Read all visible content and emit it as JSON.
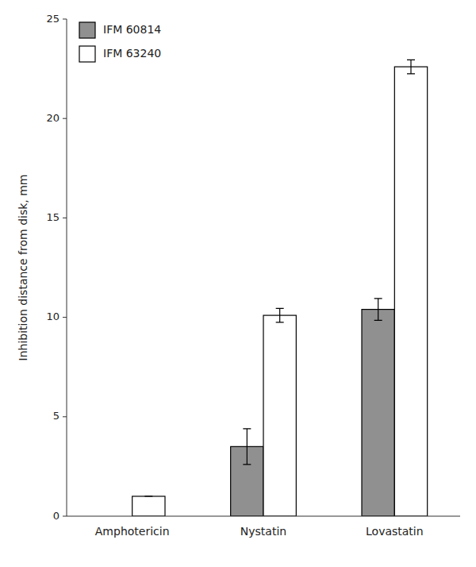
{
  "chart_data": {
    "type": "bar",
    "categories": [
      "Amphotericin",
      "Nystatin",
      "Lovastatin"
    ],
    "series": [
      {
        "name": "IFM 60814",
        "color": "#909090",
        "values": [
          0,
          3.5,
          10.4
        ],
        "errors": [
          0,
          0.9,
          0.55
        ]
      },
      {
        "name": "IFM 63240",
        "color": "#ffffff",
        "values": [
          1.0,
          10.1,
          22.6
        ],
        "errors": [
          0,
          0.35,
          0.35
        ]
      }
    ],
    "y_label": "Inhibition distance from disk, mm",
    "ylim": [
      0,
      25
    ],
    "yticks": [
      0,
      5,
      10,
      15,
      20,
      25
    ],
    "legend": "upper left",
    "grid": false
  }
}
